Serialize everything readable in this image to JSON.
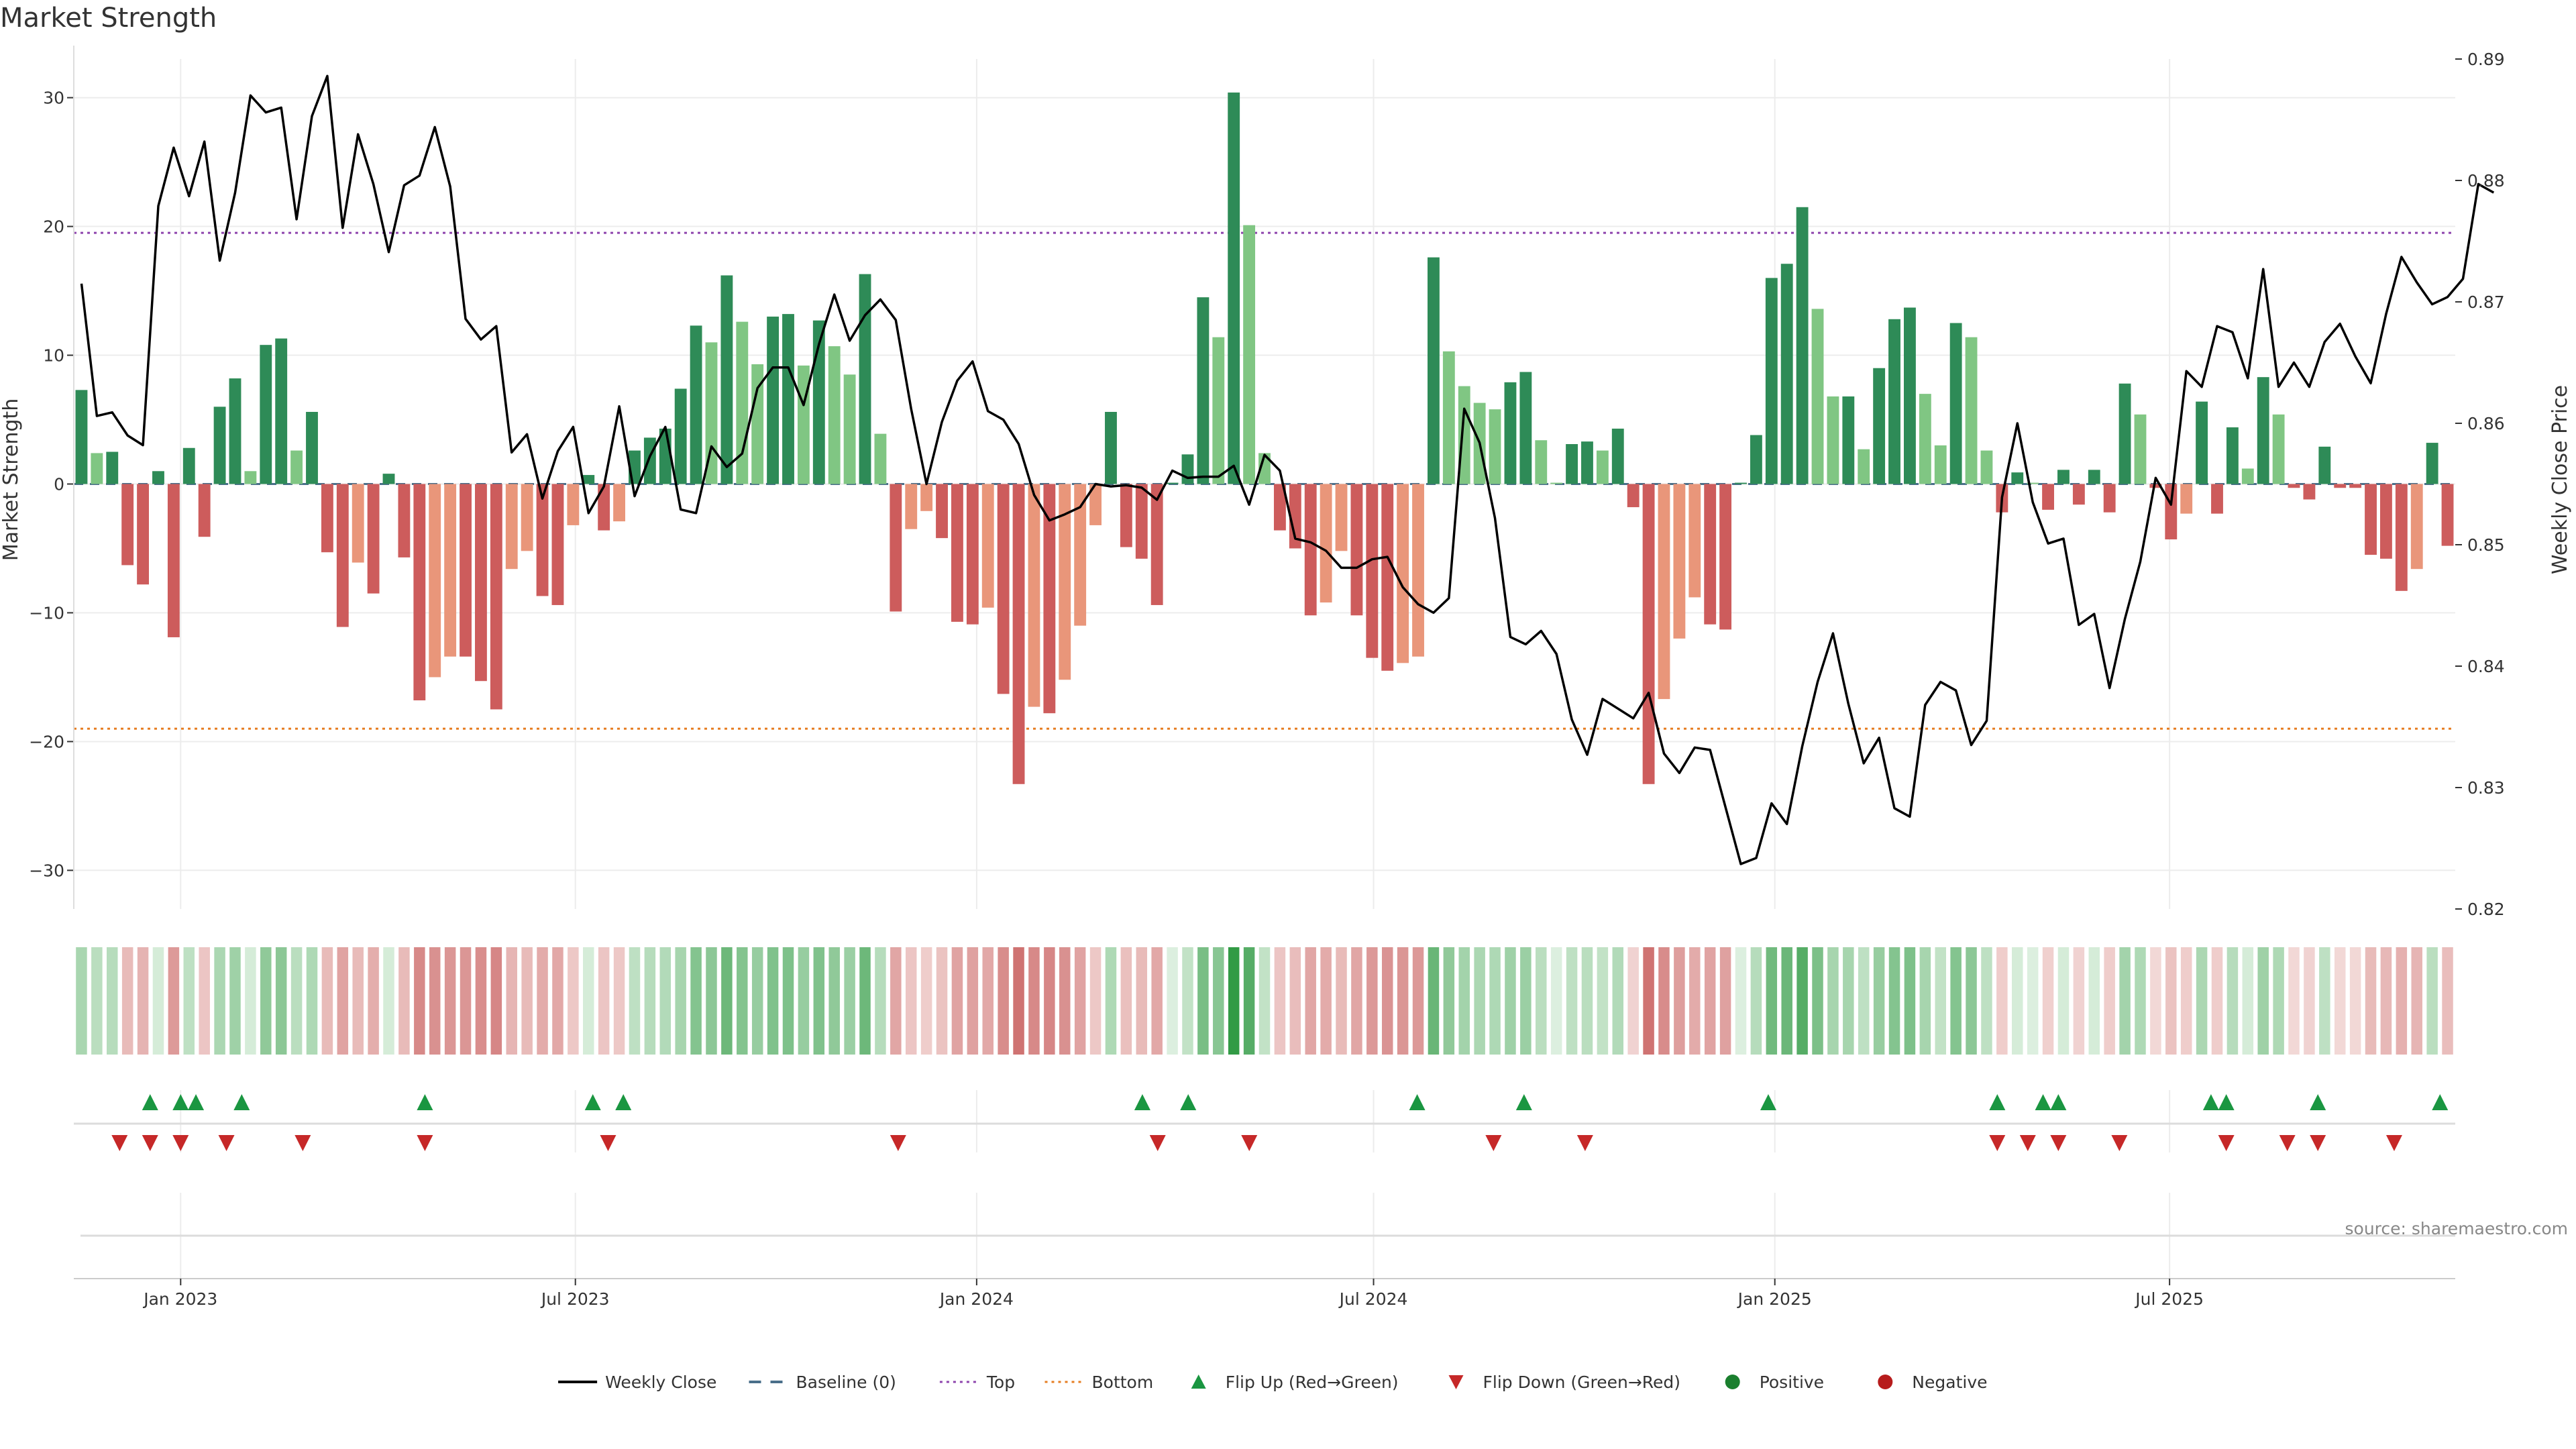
{
  "chart_data": {
    "type": "bar",
    "title": "Market Strength",
    "ylabel": "Market Strength",
    "y2label": "Weekly Close Price",
    "ylim": [
      -33,
      33
    ],
    "y2lim": [
      0.82,
      0.89
    ],
    "yticks": [
      30,
      20,
      10,
      0,
      -10,
      -20,
      -30
    ],
    "ytick_labels": [
      "30",
      "20",
      "10",
      "0",
      "−10",
      "−20",
      "−30"
    ],
    "y2ticks": [
      0.89,
      0.88,
      0.87,
      0.86,
      0.85,
      0.84,
      0.83,
      0.82
    ],
    "y2tick_labels": [
      "0.89",
      "0.88",
      "0.87",
      "0.86",
      "0.85",
      "0.84",
      "0.83",
      "0.82"
    ],
    "x_start": "2022-11-13",
    "x_end": "2025-11-09",
    "xticks": [
      "2023-01-01",
      "2023-07-01",
      "2024-01-01",
      "2024-07-01",
      "2025-01-01",
      "2025-07-01"
    ],
    "xtick_labels": [
      "Jan 2023",
      "Jul 2023",
      "Jan 2024",
      "Jul 2024",
      "Jan 2025",
      "Jul 2025"
    ],
    "top_threshold": 19.5,
    "bottom_threshold": -19.0,
    "strength": [
      7.3,
      2.4,
      2.5,
      -6.3,
      -7.8,
      1.0,
      -11.9,
      2.8,
      -4.1,
      6.0,
      8.2,
      1.0,
      10.8,
      11.3,
      2.6,
      5.6,
      -5.3,
      -11.1,
      -6.1,
      -8.5,
      0.8,
      -5.7,
      -16.8,
      -15.0,
      -13.4,
      -13.4,
      -15.3,
      -17.5,
      -6.6,
      -5.2,
      -8.7,
      -9.4,
      -3.2,
      0.7,
      -3.6,
      -2.9,
      2.6,
      3.6,
      4.3,
      7.4,
      12.3,
      11.0,
      16.2,
      12.6,
      9.3,
      13.0,
      13.2,
      9.2,
      12.7,
      10.7,
      8.5,
      16.3,
      3.9,
      -9.9,
      -3.5,
      -2.1,
      -4.2,
      -10.7,
      -10.9,
      -9.6,
      -16.3,
      -23.3,
      -17.3,
      -17.8,
      -15.2,
      -11.0,
      -3.2,
      5.6,
      -4.9,
      -5.8,
      -9.4,
      0.1,
      2.3,
      14.5,
      11.4,
      30.4,
      20.1,
      2.4,
      -3.6,
      -5.0,
      -10.2,
      -9.2,
      -5.2,
      -10.2,
      -13.5,
      -14.5,
      -13.9,
      -13.4,
      17.6,
      10.3,
      7.6,
      6.3,
      5.8,
      7.9,
      8.7,
      3.4,
      0.1,
      3.1,
      3.3,
      2.6,
      4.3,
      -1.8,
      -23.3,
      -16.7,
      -12.0,
      -8.8,
      -10.9,
      -11.3,
      0.1,
      3.8,
      16.0,
      17.1,
      21.5,
      13.6,
      6.8,
      6.8,
      2.7,
      9.0,
      12.8,
      13.7,
      7.0,
      3.0,
      12.5,
      11.4,
      2.6,
      -2.2,
      0.9,
      0.1,
      -2.0,
      1.1,
      -1.6,
      1.1,
      -2.2,
      7.8,
      5.4,
      -0.3,
      -4.3,
      -2.3,
      6.4,
      -2.3,
      4.4,
      1.2,
      8.3,
      5.4,
      -0.3,
      -1.2,
      2.9,
      -0.3,
      -0.3,
      -5.5,
      -5.8,
      -8.3,
      -6.6,
      3.2,
      -4.8
    ],
    "close": [
      0.8715,
      0.8606,
      0.8609,
      0.859,
      0.8582,
      0.8779,
      0.8827,
      0.8787,
      0.8832,
      0.8734,
      0.879,
      0.887,
      0.8856,
      0.886,
      0.8768,
      0.8853,
      0.8886,
      0.8761,
      0.8838,
      0.8797,
      0.8741,
      0.8796,
      0.8804,
      0.8844,
      0.8795,
      0.8686,
      0.8669,
      0.868,
      0.8576,
      0.8591,
      0.8538,
      0.8577,
      0.8597,
      0.8526,
      0.8548,
      0.8614,
      0.854,
      0.8573,
      0.8597,
      0.8529,
      0.8526,
      0.8581,
      0.8564,
      0.8575,
      0.8629,
      0.8646,
      0.8646,
      0.8615,
      0.8665,
      0.8706,
      0.8668,
      0.8689,
      0.8702,
      0.8685,
      0.8612,
      0.855,
      0.8601,
      0.8635,
      0.8651,
      0.861,
      0.8603,
      0.8583,
      0.8541,
      0.852,
      0.8525,
      0.8531,
      0.855,
      0.8548,
      0.8549,
      0.8547,
      0.8537,
      0.8561,
      0.8555,
      0.8556,
      0.8556,
      0.8565,
      0.8533,
      0.8574,
      0.8561,
      0.8505,
      0.8502,
      0.8495,
      0.8481,
      0.8481,
      0.8488,
      0.849,
      0.8465,
      0.8451,
      0.8444,
      0.8456,
      0.8612,
      0.8584,
      0.8522,
      0.8424,
      0.8418,
      0.8429,
      0.841,
      0.8356,
      0.8327,
      0.8373,
      0.8365,
      0.8357,
      0.8378,
      0.8328,
      0.8312,
      0.8333,
      0.8331,
      0.8284,
      0.8237,
      0.8242,
      0.8287,
      0.827,
      0.8334,
      0.8387,
      0.8427,
      0.8369,
      0.832,
      0.8341,
      0.8283,
      0.8276,
      0.8368,
      0.8387,
      0.838,
      0.8335,
      0.8355,
      0.8539,
      0.86,
      0.8535,
      0.8501,
      0.8505,
      0.8434,
      0.8443,
      0.8382,
      0.8439,
      0.8486,
      0.8555,
      0.8533,
      0.8643,
      0.863,
      0.868,
      0.8675,
      0.8637,
      0.8727,
      0.863,
      0.865,
      0.863,
      0.8667,
      0.8682,
      0.8655,
      0.8633,
      0.869,
      0.8737,
      0.8716,
      0.8698,
      0.8704,
      0.8719,
      0.8797,
      0.879
    ],
    "heat_levels": [
      0.33,
      0.24,
      0.26,
      -0.3,
      -0.36,
      0.1,
      -0.55,
      0.22,
      -0.22,
      0.32,
      0.38,
      0.1,
      0.46,
      0.48,
      0.24,
      0.3,
      -0.3,
      -0.48,
      -0.3,
      -0.4,
      0.1,
      -0.3,
      -0.68,
      -0.62,
      -0.58,
      -0.58,
      -0.64,
      -0.7,
      -0.34,
      -0.3,
      -0.42,
      -0.44,
      -0.2,
      0.1,
      -0.22,
      -0.2,
      0.22,
      0.26,
      0.28,
      0.34,
      0.52,
      0.48,
      0.64,
      0.52,
      0.42,
      0.54,
      0.55,
      0.42,
      0.54,
      0.46,
      0.4,
      0.64,
      0.26,
      -0.46,
      -0.22,
      -0.16,
      -0.24,
      -0.48,
      -0.5,
      -0.44,
      -0.65,
      -0.85,
      -0.68,
      -0.7,
      -0.62,
      -0.48,
      -0.2,
      0.3,
      -0.26,
      -0.3,
      -0.44,
      0.06,
      0.2,
      0.58,
      0.5,
      0.95,
      0.76,
      0.2,
      -0.22,
      -0.28,
      -0.46,
      -0.42,
      -0.3,
      -0.46,
      -0.56,
      -0.6,
      -0.58,
      -0.56,
      0.66,
      0.46,
      0.36,
      0.32,
      0.3,
      0.38,
      0.4,
      0.24,
      0.06,
      0.22,
      0.24,
      0.2,
      0.28,
      -0.12,
      -0.85,
      -0.66,
      -0.52,
      -0.42,
      -0.48,
      -0.5,
      0.06,
      0.26,
      0.62,
      0.65,
      0.76,
      0.56,
      0.34,
      0.34,
      0.22,
      0.42,
      0.52,
      0.55,
      0.34,
      0.2,
      0.52,
      0.48,
      0.22,
      -0.16,
      0.1,
      0.06,
      -0.14,
      0.1,
      -0.12,
      0.1,
      -0.16,
      0.36,
      0.3,
      -0.08,
      -0.24,
      -0.16,
      0.32,
      -0.16,
      0.26,
      0.1,
      0.38,
      0.3,
      -0.08,
      -0.12,
      0.22,
      -0.08,
      -0.08,
      -0.3,
      -0.32,
      -0.38,
      -0.34,
      0.24,
      -0.28
    ],
    "flip_up_dates": [
      "2022-12-18",
      "2023-01-01",
      "2023-01-08",
      "2023-01-29",
      "2023-04-23",
      "2023-07-09",
      "2023-07-23",
      "2024-03-17",
      "2024-04-07",
      "2024-07-21",
      "2024-09-08",
      "2024-12-29",
      "2025-04-13",
      "2025-05-04",
      "2025-05-11",
      "2025-07-20",
      "2025-07-27",
      "2025-09-07",
      "2025-11-02"
    ],
    "flip_down_dates": [
      "2022-12-04",
      "2022-12-18",
      "2023-01-01",
      "2023-01-22",
      "2023-02-26",
      "2023-04-23",
      "2023-07-16",
      "2023-11-26",
      "2024-03-24",
      "2024-05-05",
      "2024-08-25",
      "2024-10-06",
      "2025-04-13",
      "2025-04-27",
      "2025-05-11",
      "2025-06-08",
      "2025-07-27",
      "2025-08-24",
      "2025-09-07",
      "2025-10-12"
    ],
    "legend": [
      {
        "label": "Weekly Close",
        "kind": "line",
        "color": "#000000"
      },
      {
        "label": "Baseline (0)",
        "kind": "dash",
        "color": "#4a6f8a"
      },
      {
        "label": "Top",
        "kind": "dot",
        "color": "#8e44ad"
      },
      {
        "label": "Bottom",
        "kind": "dot",
        "color": "#e67e22"
      },
      {
        "label": "Flip Up (Red→Green)",
        "kind": "tri-up",
        "color": "#1a9641"
      },
      {
        "label": "Flip Down (Green→Red)",
        "kind": "tri-down",
        "color": "#c62828"
      },
      {
        "label": "Positive",
        "kind": "circle",
        "color": "#1a7f2e"
      },
      {
        "label": "Negative",
        "kind": "circle",
        "color": "#b71c1c"
      }
    ],
    "legend_position": "bottom-center",
    "grid": true,
    "source": "source: sharemaestro.com",
    "colors": {
      "strong_positive": "#2e8b57",
      "weak_positive": "#80c683",
      "strong_negative": "#cd5c5c",
      "weak_negative": "#e9967a",
      "line": "#000000",
      "top": "#8e44ad",
      "bottom": "#e67e22",
      "flip_up": "#1a9641",
      "flip_down": "#c62828"
    }
  }
}
